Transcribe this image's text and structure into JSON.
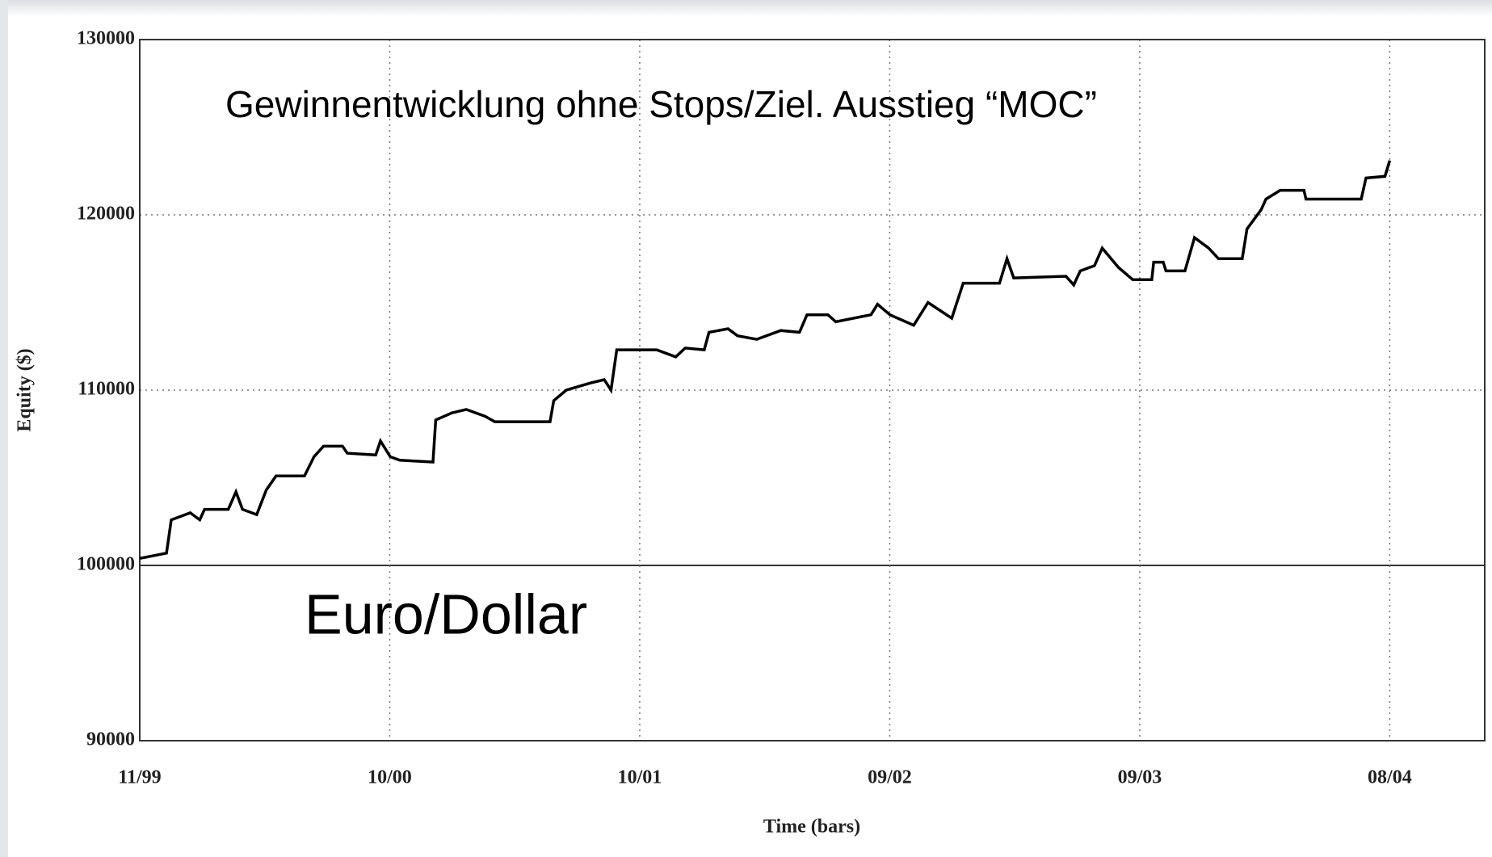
{
  "chart_data": {
    "type": "line",
    "annotations": [
      "Gewinnentwicklung ohne Stops/Ziel. Ausstieg “MOC”",
      "Euro/Dollar"
    ],
    "xlabel": "Time (bars)",
    "ylabel": "Equity ($)",
    "x": [
      0,
      0.107,
      0.126,
      0.202,
      0.24,
      0.259,
      0.354,
      0.385,
      0.411,
      0.468,
      0.506,
      0.545,
      0.659,
      0.697,
      0.735,
      0.811,
      0.83,
      0.944,
      0.963,
      1.002,
      1.04,
      1.173,
      1.184,
      1.249,
      1.306,
      1.382,
      1.42,
      1.641,
      1.656,
      1.706,
      1.801,
      1.858,
      1.885,
      1.908,
      2.068,
      2.144,
      2.182,
      2.258,
      2.277,
      2.353,
      2.391,
      2.468,
      2.564,
      2.639,
      2.669,
      2.753,
      2.784,
      2.925,
      2.951,
      3.001,
      3.096,
      3.153,
      3.248,
      3.294,
      3.439,
      3.469,
      3.496,
      3.705,
      3.736,
      3.762,
      3.819,
      3.85,
      3.915,
      3.972,
      4.048,
      4.056,
      4.094,
      4.105,
      4.181,
      4.219,
      4.276,
      4.315,
      4.41,
      4.429,
      4.486,
      4.505,
      4.562,
      4.657,
      4.665,
      4.886,
      4.905,
      4.981,
      5.0
    ],
    "series": [
      {
        "name": "Equity",
        "color": "#000000",
        "values": [
          100400,
          100700,
          102600,
          103000,
          102600,
          103200,
          103200,
          104200,
          103200,
          102900,
          104300,
          105100,
          105100,
          106200,
          106800,
          106800,
          106400,
          106300,
          107100,
          106200,
          106000,
          105900,
          108300,
          108700,
          108900,
          108500,
          108200,
          108200,
          109400,
          110000,
          110400,
          110600,
          110000,
          112300,
          112300,
          111900,
          112400,
          112300,
          113300,
          113500,
          113100,
          112900,
          113400,
          113300,
          114300,
          114300,
          113900,
          114300,
          114900,
          114300,
          113700,
          115000,
          114100,
          116100,
          116100,
          117500,
          116400,
          116500,
          116000,
          116800,
          117100,
          118100,
          117000,
          116300,
          116300,
          117300,
          117300,
          116800,
          116800,
          118700,
          118100,
          117500,
          117500,
          119200,
          120300,
          120900,
          121400,
          121400,
          120900,
          120900,
          122100,
          122200,
          123100
        ]
      }
    ],
    "xlim": [
      0,
      5.38
    ],
    "xticks": [
      {
        "value": 0,
        "label": "11/99"
      },
      {
        "value": 1,
        "label": "10/00"
      },
      {
        "value": 2,
        "label": "10/01"
      },
      {
        "value": 3,
        "label": "09/02"
      },
      {
        "value": 4,
        "label": "09/03"
      },
      {
        "value": 5,
        "label": "08/04"
      }
    ],
    "ylim": [
      90000,
      130000
    ],
    "yticks": [
      90000,
      100000,
      110000,
      120000,
      130000
    ],
    "grid": true
  }
}
